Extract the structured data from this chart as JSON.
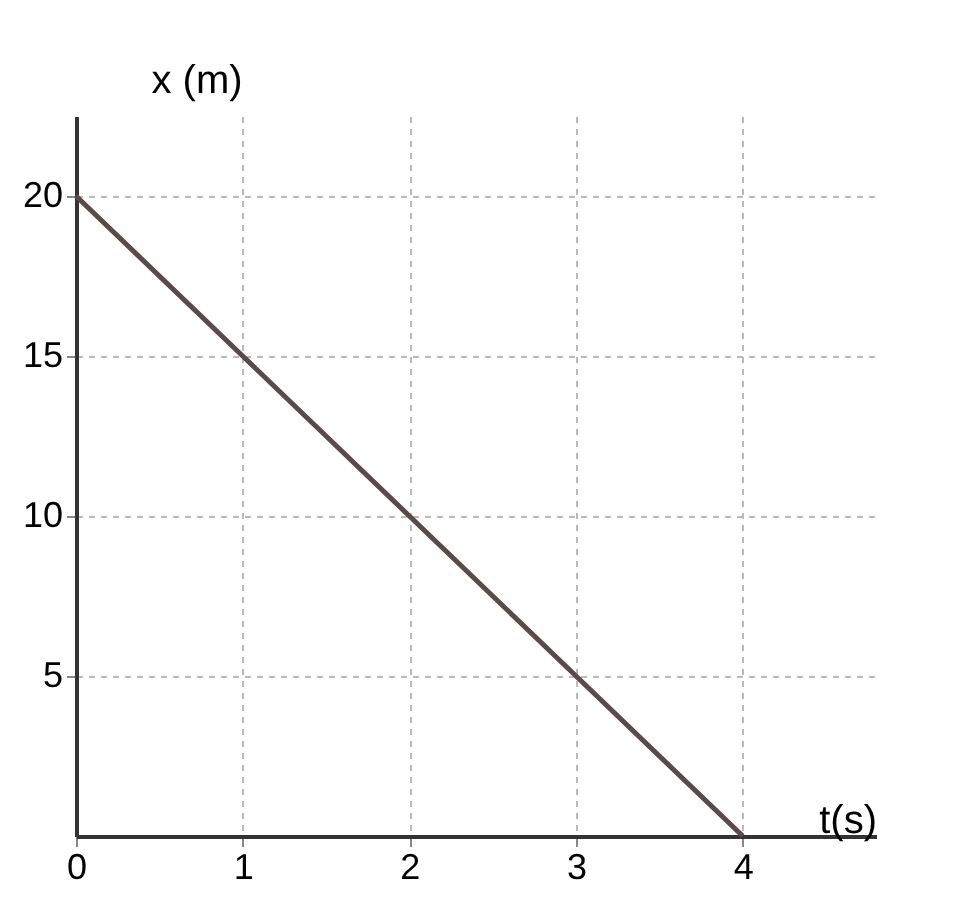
{
  "chart_data": {
    "type": "line",
    "xlabel": "t(s)",
    "ylabel": "x (m)",
    "x": [
      0,
      1,
      2,
      3,
      4
    ],
    "series": [
      {
        "color": "#5a4a4a",
        "values": [
          20,
          15,
          10,
          5,
          0
        ]
      }
    ],
    "xlim": [
      0,
      4.8
    ],
    "ylim": [
      0,
      22.5
    ],
    "xticks": [
      0,
      1,
      2,
      3,
      4
    ],
    "yticks": [
      5,
      10,
      15,
      20
    ],
    "grid": true,
    "marker": "none",
    "line_style": "solid",
    "legend": false
  }
}
